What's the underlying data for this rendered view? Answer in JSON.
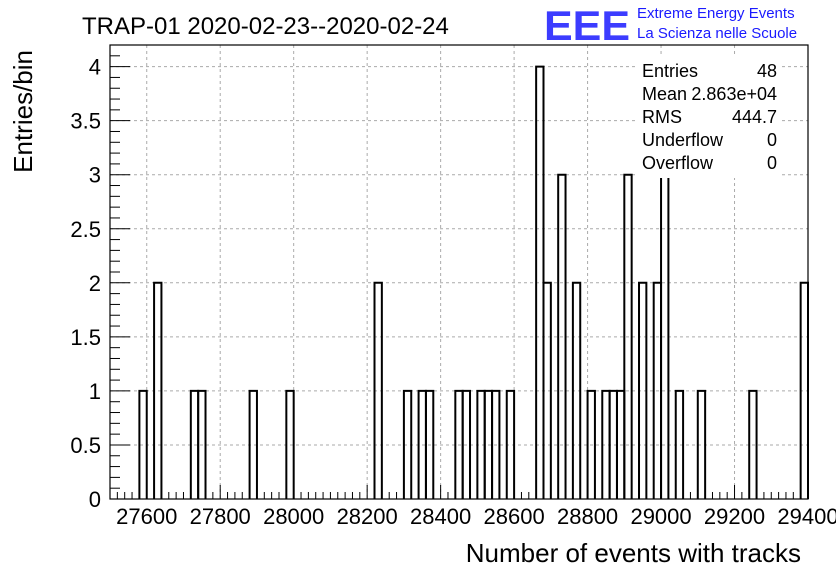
{
  "header": {
    "title": "TRAP-01 2020-02-23--2020-02-24",
    "logo_text": "EEE",
    "logo_line1": "Extreme Energy Events",
    "logo_line2": "La Scienza nelle Scuole"
  },
  "stats": {
    "rows": [
      {
        "label": "Entries",
        "value": "48"
      },
      {
        "label": "Mean",
        "value": "2.863e+04"
      },
      {
        "label": "RMS",
        "value": "444.7"
      },
      {
        "label": "Underflow",
        "value": "0"
      },
      {
        "label": "Overflow",
        "value": "0"
      }
    ]
  },
  "colors": {
    "logo": "#1a1aff",
    "line": "#000000",
    "grid": "#aaaaaa"
  },
  "chart_data": {
    "type": "bar",
    "title": "TRAP-01 2020-02-23--2020-02-24",
    "xlabel": "Number of events with tracks",
    "ylabel": "Entries/bin",
    "xlim": [
      27500,
      29400
    ],
    "ylim": [
      0,
      4.2
    ],
    "bin_width": 20,
    "x_ticks": [
      27600,
      27800,
      28000,
      28200,
      28400,
      28600,
      28800,
      29000,
      29200,
      29400
    ],
    "x_tick_labels": [
      "27600",
      "27800",
      "28000",
      "28200",
      "28400",
      "28600",
      "28800",
      "29000",
      "29200",
      "29400"
    ],
    "y_ticks": [
      0,
      0.5,
      1,
      1.5,
      2,
      2.5,
      3,
      3.5,
      4
    ],
    "y_tick_labels": [
      "0",
      "0.5",
      "1",
      "1.5",
      "2",
      "2.5",
      "3",
      "3.5",
      "4"
    ],
    "grid": true,
    "bins": [
      {
        "x": 27580,
        "count": 1
      },
      {
        "x": 27620,
        "count": 2
      },
      {
        "x": 27720,
        "count": 1
      },
      {
        "x": 27740,
        "count": 1
      },
      {
        "x": 27880,
        "count": 1
      },
      {
        "x": 27980,
        "count": 1
      },
      {
        "x": 28220,
        "count": 2
      },
      {
        "x": 28300,
        "count": 1
      },
      {
        "x": 28340,
        "count": 1
      },
      {
        "x": 28360,
        "count": 1
      },
      {
        "x": 28440,
        "count": 1
      },
      {
        "x": 28460,
        "count": 1
      },
      {
        "x": 28500,
        "count": 1
      },
      {
        "x": 28520,
        "count": 1
      },
      {
        "x": 28540,
        "count": 1
      },
      {
        "x": 28580,
        "count": 1
      },
      {
        "x": 28660,
        "count": 4
      },
      {
        "x": 28680,
        "count": 2
      },
      {
        "x": 28720,
        "count": 3
      },
      {
        "x": 28760,
        "count": 2
      },
      {
        "x": 28800,
        "count": 1
      },
      {
        "x": 28840,
        "count": 1
      },
      {
        "x": 28860,
        "count": 1
      },
      {
        "x": 28880,
        "count": 1
      },
      {
        "x": 28900,
        "count": 3
      },
      {
        "x": 28940,
        "count": 2
      },
      {
        "x": 28980,
        "count": 2
      },
      {
        "x": 29000,
        "count": 3
      },
      {
        "x": 29040,
        "count": 1
      },
      {
        "x": 29100,
        "count": 1
      },
      {
        "x": 29240,
        "count": 1
      },
      {
        "x": 29380,
        "count": 2
      }
    ]
  }
}
